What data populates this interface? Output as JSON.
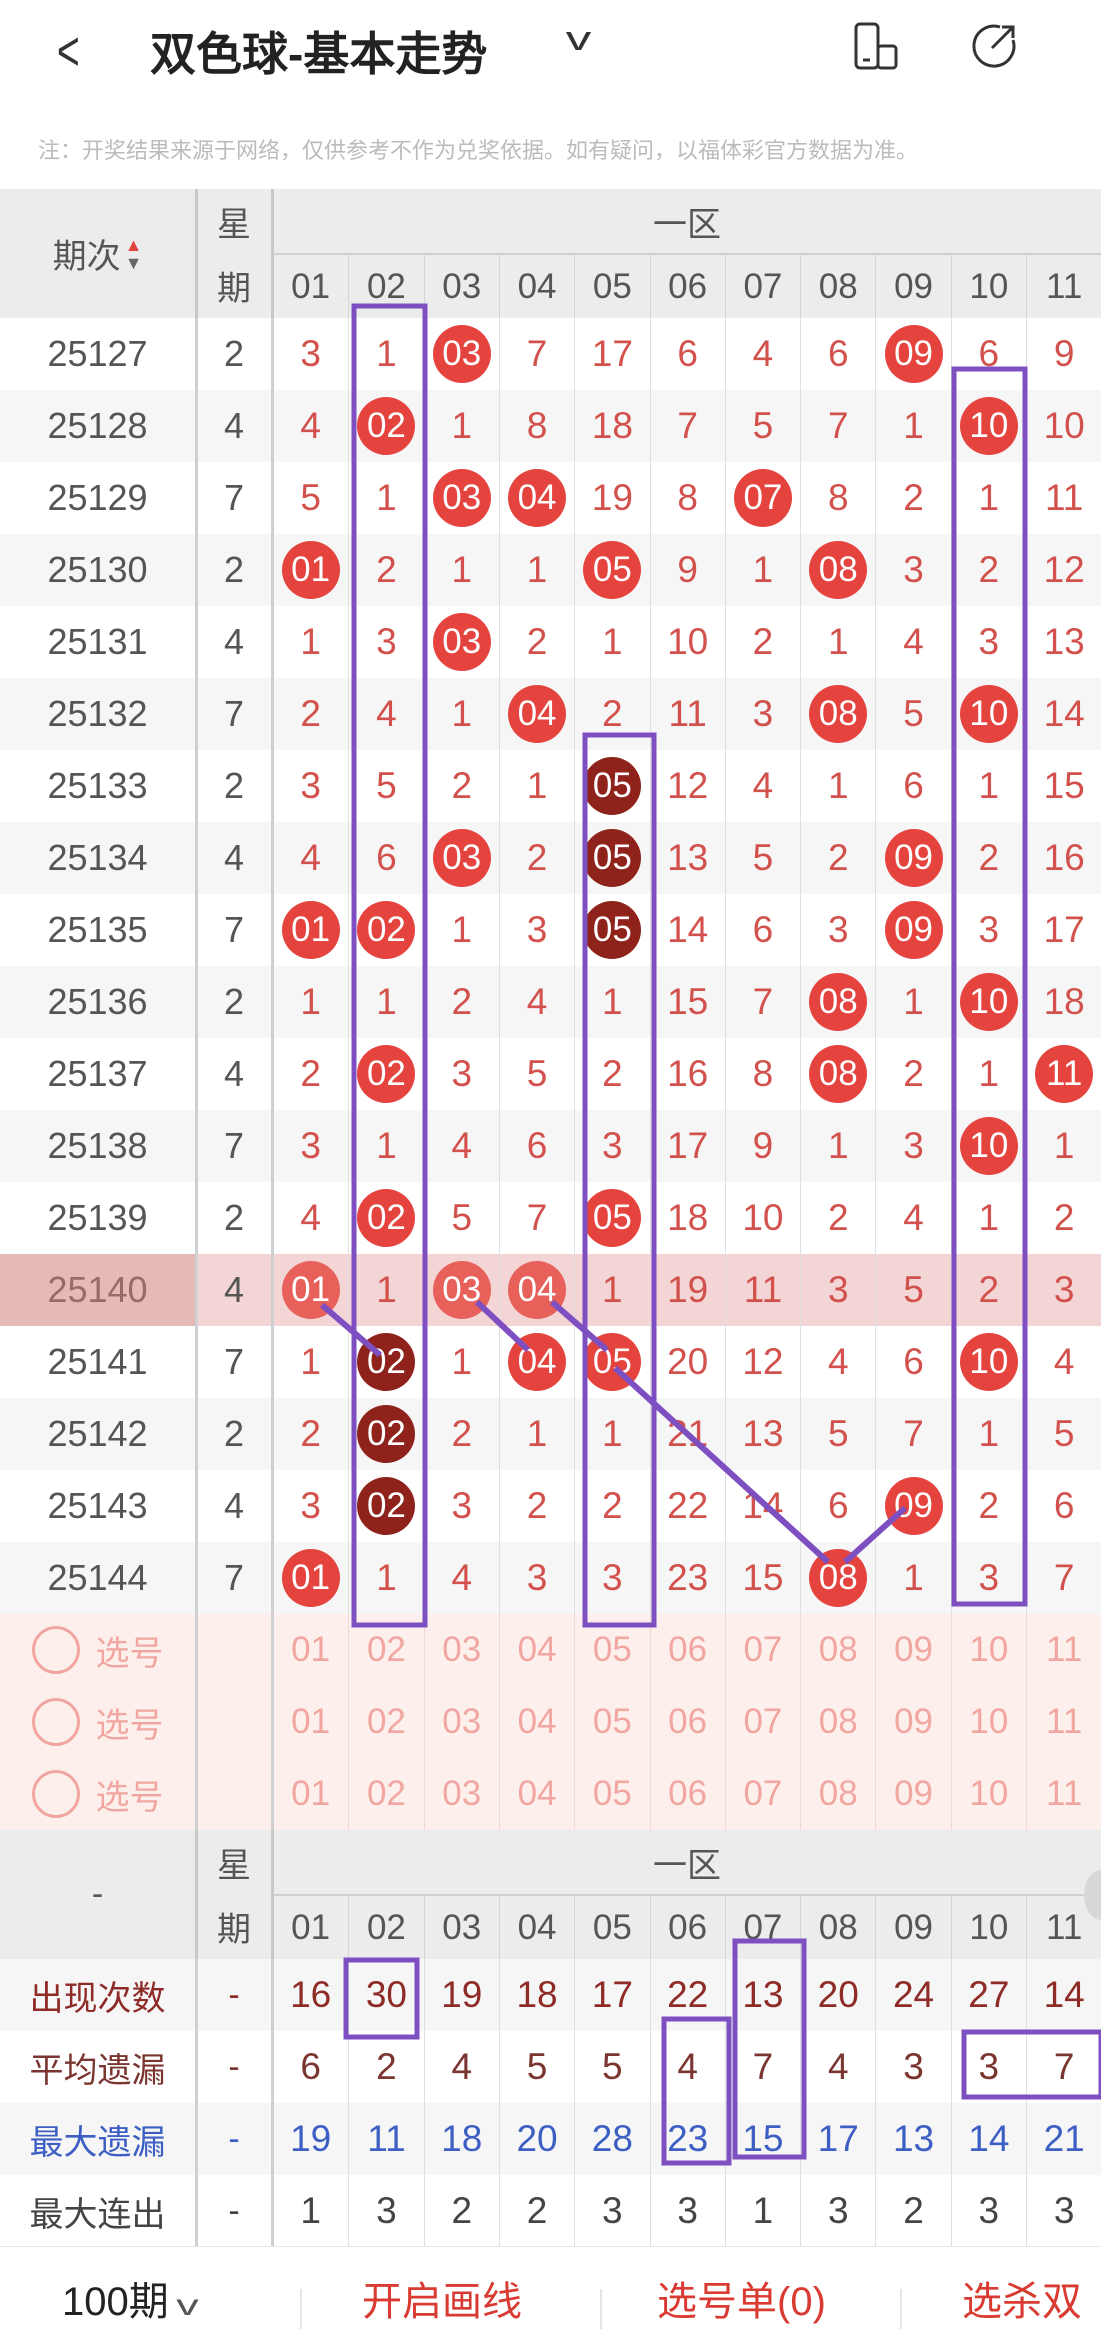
{
  "header": {
    "back_icon": "chevron-left-icon",
    "title": "双色球-基本走势",
    "dropdown_icon": "chevron-down-icon",
    "phone_icon": "phone-rotate-icon",
    "share_icon": "share-icon"
  },
  "note": "注：开奖结果来源于网络，仅供参考不作为兑奖依据。如有疑问，以福体彩官方数据为准。",
  "table": {
    "period_header": "期次",
    "sort_icon": "sort-up-down-icon",
    "week_header": [
      "星",
      "期"
    ],
    "zone_header": "一区",
    "numbers": [
      "01",
      "02",
      "03",
      "04",
      "05",
      "06",
      "07",
      "08",
      "09",
      "10",
      "11"
    ],
    "highlight_period": "25140",
    "colors": {
      "ball": "#e5433d",
      "ball_repeat": "#8f231c",
      "miss": "#d2514c",
      "highlight": "#f3d5d5",
      "annotation": "#7d4fc0"
    },
    "rows": [
      {
        "period": "25127",
        "week": "2",
        "cells": [
          [
            "3"
          ],
          [
            "1"
          ],
          [
            "03",
            "red"
          ],
          [
            "7"
          ],
          [
            "17"
          ],
          [
            "6"
          ],
          [
            "4"
          ],
          [
            "6"
          ],
          [
            "09",
            "red"
          ],
          [
            "6"
          ],
          [
            "9"
          ]
        ]
      },
      {
        "period": "25128",
        "week": "4",
        "cells": [
          [
            "4"
          ],
          [
            "02",
            "red"
          ],
          [
            "1"
          ],
          [
            "8"
          ],
          [
            "18"
          ],
          [
            "7"
          ],
          [
            "5"
          ],
          [
            "7"
          ],
          [
            "1"
          ],
          [
            "10",
            "red"
          ],
          [
            "10"
          ]
        ]
      },
      {
        "period": "25129",
        "week": "7",
        "cells": [
          [
            "5"
          ],
          [
            "1"
          ],
          [
            "03",
            "red"
          ],
          [
            "04",
            "red"
          ],
          [
            "19"
          ],
          [
            "8"
          ],
          [
            "07",
            "red"
          ],
          [
            "8"
          ],
          [
            "2"
          ],
          [
            "1"
          ],
          [
            "11"
          ]
        ]
      },
      {
        "period": "25130",
        "week": "2",
        "cells": [
          [
            "01",
            "red"
          ],
          [
            "2"
          ],
          [
            "1"
          ],
          [
            "1"
          ],
          [
            "05",
            "red"
          ],
          [
            "9"
          ],
          [
            "1"
          ],
          [
            "08",
            "red"
          ],
          [
            "3"
          ],
          [
            "2"
          ],
          [
            "12"
          ]
        ]
      },
      {
        "period": "25131",
        "week": "4",
        "cells": [
          [
            "1"
          ],
          [
            "3"
          ],
          [
            "03",
            "red"
          ],
          [
            "2"
          ],
          [
            "1"
          ],
          [
            "10"
          ],
          [
            "2"
          ],
          [
            "1"
          ],
          [
            "4"
          ],
          [
            "3"
          ],
          [
            "13"
          ]
        ]
      },
      {
        "period": "25132",
        "week": "7",
        "cells": [
          [
            "2"
          ],
          [
            "4"
          ],
          [
            "1"
          ],
          [
            "04",
            "red"
          ],
          [
            "2"
          ],
          [
            "11"
          ],
          [
            "3"
          ],
          [
            "08",
            "red"
          ],
          [
            "5"
          ],
          [
            "10",
            "red"
          ],
          [
            "14"
          ]
        ]
      },
      {
        "period": "25133",
        "week": "2",
        "cells": [
          [
            "3"
          ],
          [
            "5"
          ],
          [
            "2"
          ],
          [
            "1"
          ],
          [
            "05",
            "dark"
          ],
          [
            "12"
          ],
          [
            "4"
          ],
          [
            "1"
          ],
          [
            "6"
          ],
          [
            "1"
          ],
          [
            "15"
          ]
        ]
      },
      {
        "period": "25134",
        "week": "4",
        "cells": [
          [
            "4"
          ],
          [
            "6"
          ],
          [
            "03",
            "red"
          ],
          [
            "2"
          ],
          [
            "05",
            "dark"
          ],
          [
            "13"
          ],
          [
            "5"
          ],
          [
            "2"
          ],
          [
            "09",
            "red"
          ],
          [
            "2"
          ],
          [
            "16"
          ]
        ]
      },
      {
        "period": "25135",
        "week": "7",
        "cells": [
          [
            "01",
            "red"
          ],
          [
            "02",
            "red"
          ],
          [
            "1"
          ],
          [
            "3"
          ],
          [
            "05",
            "dark"
          ],
          [
            "14"
          ],
          [
            "6"
          ],
          [
            "3"
          ],
          [
            "09",
            "red"
          ],
          [
            "3"
          ],
          [
            "17"
          ]
        ]
      },
      {
        "period": "25136",
        "week": "2",
        "cells": [
          [
            "1"
          ],
          [
            "1"
          ],
          [
            "2"
          ],
          [
            "4"
          ],
          [
            "1"
          ],
          [
            "15"
          ],
          [
            "7"
          ],
          [
            "08",
            "red"
          ],
          [
            "1"
          ],
          [
            "10",
            "red"
          ],
          [
            "18"
          ]
        ]
      },
      {
        "period": "25137",
        "week": "4",
        "cells": [
          [
            "2"
          ],
          [
            "02",
            "red"
          ],
          [
            "3"
          ],
          [
            "5"
          ],
          [
            "2"
          ],
          [
            "16"
          ],
          [
            "8"
          ],
          [
            "08",
            "red"
          ],
          [
            "2"
          ],
          [
            "1"
          ],
          [
            "11",
            "red"
          ]
        ]
      },
      {
        "period": "25138",
        "week": "7",
        "cells": [
          [
            "3"
          ],
          [
            "1"
          ],
          [
            "4"
          ],
          [
            "6"
          ],
          [
            "3"
          ],
          [
            "17"
          ],
          [
            "9"
          ],
          [
            "1"
          ],
          [
            "3"
          ],
          [
            "10",
            "red"
          ],
          [
            "1"
          ]
        ]
      },
      {
        "period": "25139",
        "week": "2",
        "cells": [
          [
            "4"
          ],
          [
            "02",
            "red"
          ],
          [
            "5"
          ],
          [
            "7"
          ],
          [
            "05",
            "red"
          ],
          [
            "18"
          ],
          [
            "10"
          ],
          [
            "2"
          ],
          [
            "4"
          ],
          [
            "1"
          ],
          [
            "2"
          ]
        ]
      },
      {
        "period": "25140",
        "week": "4",
        "cells": [
          [
            "01",
            "red"
          ],
          [
            "1"
          ],
          [
            "03",
            "red"
          ],
          [
            "04",
            "red"
          ],
          [
            "1"
          ],
          [
            "19"
          ],
          [
            "11"
          ],
          [
            "3"
          ],
          [
            "5"
          ],
          [
            "2"
          ],
          [
            "3"
          ]
        ]
      },
      {
        "period": "25141",
        "week": "7",
        "cells": [
          [
            "1"
          ],
          [
            "02",
            "dark"
          ],
          [
            "1"
          ],
          [
            "04",
            "red"
          ],
          [
            "05",
            "red"
          ],
          [
            "20"
          ],
          [
            "12"
          ],
          [
            "4"
          ],
          [
            "6"
          ],
          [
            "10",
            "red"
          ],
          [
            "4"
          ]
        ]
      },
      {
        "period": "25142",
        "week": "2",
        "cells": [
          [
            "2"
          ],
          [
            "02",
            "dark"
          ],
          [
            "2"
          ],
          [
            "1"
          ],
          [
            "1"
          ],
          [
            "21"
          ],
          [
            "13"
          ],
          [
            "5"
          ],
          [
            "7"
          ],
          [
            "1"
          ],
          [
            "5"
          ]
        ]
      },
      {
        "period": "25143",
        "week": "4",
        "cells": [
          [
            "3"
          ],
          [
            "02",
            "dark"
          ],
          [
            "3"
          ],
          [
            "2"
          ],
          [
            "2"
          ],
          [
            "22"
          ],
          [
            "14"
          ],
          [
            "6"
          ],
          [
            "09",
            "red"
          ],
          [
            "2"
          ],
          [
            "6"
          ]
        ]
      },
      {
        "period": "25144",
        "week": "7",
        "cells": [
          [
            "01",
            "red"
          ],
          [
            "1"
          ],
          [
            "4"
          ],
          [
            "3"
          ],
          [
            "3"
          ],
          [
            "23"
          ],
          [
            "15"
          ],
          [
            "08",
            "red"
          ],
          [
            "1"
          ],
          [
            "3"
          ],
          [
            "7"
          ]
        ]
      }
    ],
    "select_rows": [
      {
        "label": "选号"
      },
      {
        "label": "选号"
      },
      {
        "label": "选号"
      }
    ]
  },
  "stats": {
    "corner": "-",
    "week_header": [
      "星",
      "期"
    ],
    "zone_header": "一区",
    "numbers": [
      "01",
      "02",
      "03",
      "04",
      "05",
      "06",
      "07",
      "08",
      "09",
      "10",
      "11"
    ],
    "rows": [
      {
        "label": "出现次数",
        "week": "-",
        "color": "#8e2b27",
        "values": [
          "16",
          "30",
          "19",
          "18",
          "17",
          "22",
          "13",
          "20",
          "24",
          "27",
          "14"
        ]
      },
      {
        "label": "平均遗漏",
        "week": "-",
        "color": "#7a3530",
        "values": [
          "6",
          "2",
          "4",
          "5",
          "5",
          "4",
          "7",
          "4",
          "3",
          "3",
          "7"
        ]
      },
      {
        "label": "最大遗漏",
        "week": "-",
        "color": "#3d5fc4",
        "values": [
          "19",
          "11",
          "18",
          "20",
          "28",
          "23",
          "15",
          "17",
          "13",
          "14",
          "21"
        ]
      },
      {
        "label": "最大连出",
        "week": "-",
        "color": "#444444",
        "values": [
          "1",
          "3",
          "2",
          "2",
          "3",
          "3",
          "1",
          "3",
          "2",
          "3",
          "3"
        ]
      }
    ]
  },
  "footer": {
    "periods": "100期",
    "periods_icon": "chevron-down-icon",
    "draw_lines": "开启画线",
    "pick_list": "选号单(0)",
    "kill": "选杀双"
  }
}
